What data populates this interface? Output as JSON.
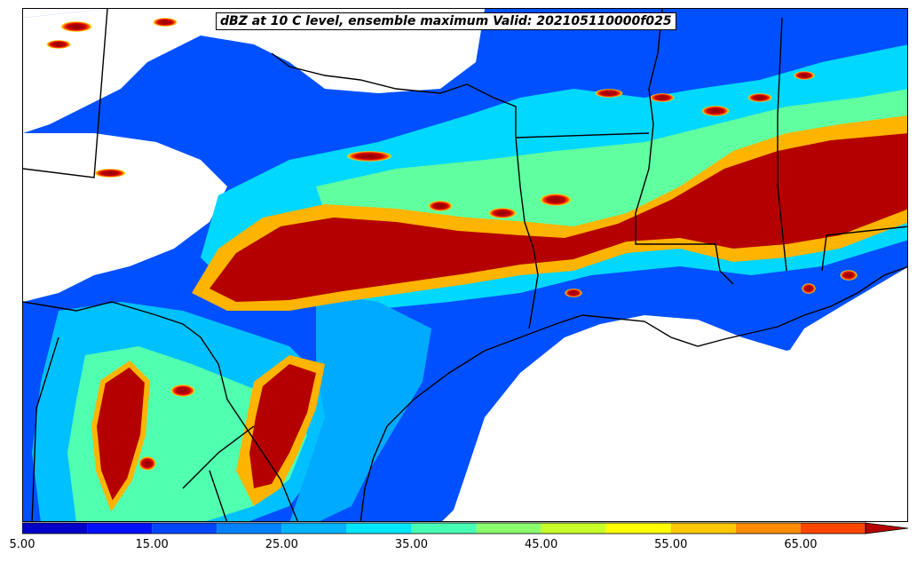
{
  "title": "dBZ at 10 C level, ensemble maximum Valid: 202105110000f025",
  "colorbar": {
    "min": 5,
    "max": 70,
    "step": 5,
    "extend": "max",
    "colors": [
      "#0000c8",
      "#0010ff",
      "#0046ff",
      "#0082ff",
      "#00b4ff",
      "#00e6ff",
      "#46ffb4",
      "#8cff6e",
      "#c8ff28",
      "#ffff00",
      "#ffc800",
      "#ff8c00",
      "#ff4600",
      "#ff0000",
      "#b40000"
    ],
    "ticks": [
      {
        "value": 5,
        "label": "5.00"
      },
      {
        "value": 15,
        "label": "15.00"
      },
      {
        "value": 25,
        "label": "25.00"
      },
      {
        "value": 35,
        "label": "35.00"
      },
      {
        "value": 45,
        "label": "45.00"
      },
      {
        "value": 55,
        "label": "55.00"
      },
      {
        "value": 65,
        "label": "65.00"
      }
    ]
  }
}
